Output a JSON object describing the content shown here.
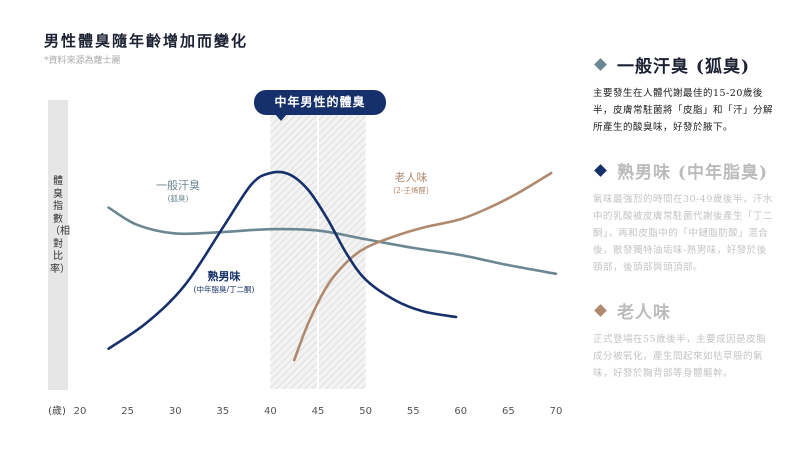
{
  "title": "男性體臭隨年齡增加而變化",
  "source": "*資料來源為蘿士麗",
  "ylabel": "體臭指數（相對比率）",
  "highlight_label": "中年男性的體臭",
  "colors": {
    "general": "#6b8791",
    "mature": "#16306b",
    "elderly": "#b08a6e",
    "highlight": "#16306b"
  },
  "chart_data": {
    "type": "line",
    "title": "男性體臭隨年齡增加而變化",
    "ylabel": "體臭指數（相對比率）",
    "x_unit": "(歲)",
    "xlim": [
      20,
      70
    ],
    "xticks": [
      20,
      25,
      30,
      35,
      40,
      45,
      50,
      55,
      60,
      65,
      70
    ],
    "ylim": [
      0,
      100
    ],
    "highlight_range": [
      40,
      50
    ],
    "series": [
      {
        "key": "general",
        "name": "一般汗臭",
        "sub": "(狐臭)",
        "x": [
          23,
          26,
          30,
          35,
          40,
          45,
          50,
          55,
          60,
          65,
          70
        ],
        "y": [
          63,
          57,
          54,
          54.5,
          55.5,
          55,
          52,
          49,
          46.5,
          43,
          40
        ]
      },
      {
        "key": "mature",
        "name": "熟男味",
        "sub": "(中年脂臭/丁二酮)",
        "x": [
          23,
          27,
          31,
          35,
          38,
          40,
          42,
          44,
          46,
          48,
          50,
          53,
          56,
          59.5
        ],
        "y": [
          14,
          23,
          36,
          56,
          71,
          75,
          74.5,
          69,
          59,
          47,
          38,
          31,
          27,
          25
        ]
      },
      {
        "key": "elderly",
        "name": "老人味",
        "sub": "(2-壬烯醛)",
        "x": [
          42.5,
          44,
          46,
          48,
          50,
          53,
          56,
          60,
          63,
          66,
          69.5
        ],
        "y": [
          10,
          23,
          36,
          44,
          49,
          53,
          56,
          59,
          63,
          68,
          75
        ]
      }
    ]
  },
  "sidebar": [
    {
      "title": "一般汗臭 (狐臭)",
      "body": "主要發生在人體代謝最佳的15-20歲後半，皮膚常駐菌將「皮脂」和「汗」分解所產生的酸臭味，好發於腋下。"
    },
    {
      "title": "熟男味 (中年脂臭)",
      "body": "氣味最強烈的時間在30-49歲後半，汗水中的乳酸被皮膚常駐菌代謝後產生「丁二酮」，再和皮脂中的「中鏈脂肪酸」混合後，散發獨特油垢味-熟男味，好發於後頸部，後頭部與頭頂部。"
    },
    {
      "title": "老人味",
      "body": "正式登場在55歲後半，主要成因是皮脂成分被氧化，產生間起來如枯草般的氣味，好發於胸背部等身體軀幹。"
    }
  ]
}
